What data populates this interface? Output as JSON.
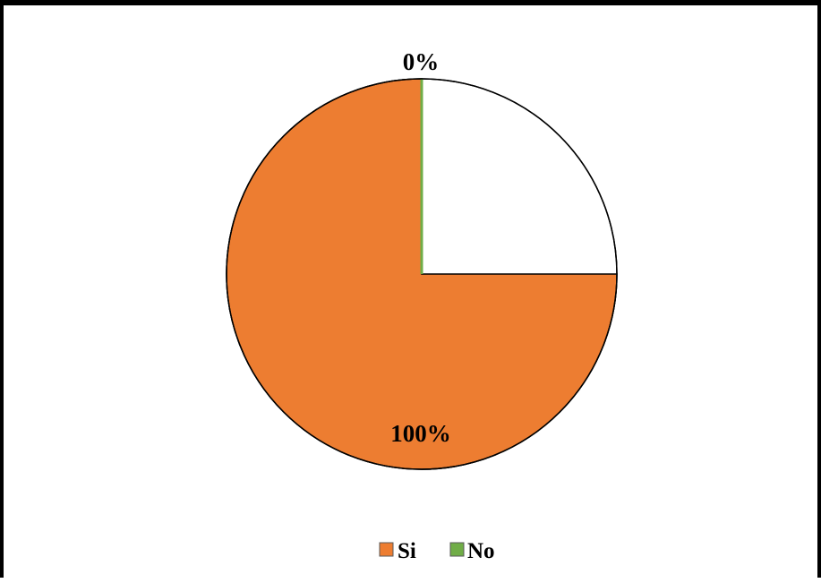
{
  "chart_data": {
    "type": "pie",
    "title": "",
    "categories": [
      "Si",
      "No"
    ],
    "values": [
      75,
      0
    ],
    "data_labels": [
      "100%",
      "0%"
    ],
    "colors": {
      "Si": "#ED7D31",
      "No": "#70AD47",
      "empty": "#FFFFFF",
      "outline": "#000000"
    },
    "legend": {
      "placement": "bottom",
      "entries": [
        "Si",
        "No"
      ]
    }
  }
}
